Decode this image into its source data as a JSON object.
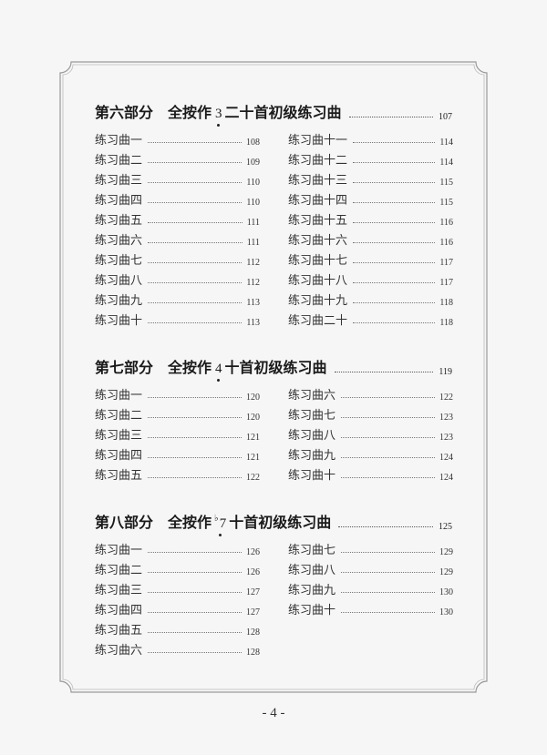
{
  "sections": [
    {
      "part": "第六部分",
      "title_pre": "全按作",
      "note": "3",
      "flat": "",
      "title_post": "二十首初级练习曲",
      "page": "107",
      "left": [
        [
          "练习曲一",
          "108"
        ],
        [
          "练习曲二",
          "109"
        ],
        [
          "练习曲三",
          "110"
        ],
        [
          "练习曲四",
          "110"
        ],
        [
          "练习曲五",
          "111"
        ],
        [
          "练习曲六",
          "111"
        ],
        [
          "练习曲七",
          "112"
        ],
        [
          "练习曲八",
          "112"
        ],
        [
          "练习曲九",
          "113"
        ],
        [
          "练习曲十",
          "113"
        ]
      ],
      "right": [
        [
          "练习曲十一",
          "114"
        ],
        [
          "练习曲十二",
          "114"
        ],
        [
          "练习曲十三",
          "115"
        ],
        [
          "练习曲十四",
          "115"
        ],
        [
          "练习曲十五",
          "116"
        ],
        [
          "练习曲十六",
          "116"
        ],
        [
          "练习曲十七",
          "117"
        ],
        [
          "练习曲十八",
          "117"
        ],
        [
          "练习曲十九",
          "118"
        ],
        [
          "练习曲二十",
          "118"
        ]
      ]
    },
    {
      "part": "第七部分",
      "title_pre": "全按作",
      "note": "4",
      "flat": "",
      "title_post": "十首初级练习曲",
      "page": "119",
      "left": [
        [
          "练习曲一",
          "120"
        ],
        [
          "练习曲二",
          "120"
        ],
        [
          "练习曲三",
          "121"
        ],
        [
          "练习曲四",
          "121"
        ],
        [
          "练习曲五",
          "122"
        ]
      ],
      "right": [
        [
          "练习曲六",
          "122"
        ],
        [
          "练习曲七",
          "123"
        ],
        [
          "练习曲八",
          "123"
        ],
        [
          "练习曲九",
          "124"
        ],
        [
          "练习曲十",
          "124"
        ]
      ]
    },
    {
      "part": "第八部分",
      "title_pre": "全按作",
      "note": "7",
      "flat": "♭",
      "title_post": "十首初级练习曲",
      "page": "125",
      "left": [
        [
          "练习曲一",
          "126"
        ],
        [
          "练习曲二",
          "126"
        ],
        [
          "练习曲三",
          "127"
        ],
        [
          "练习曲四",
          "127"
        ],
        [
          "练习曲五",
          "128"
        ],
        [
          "练习曲六",
          "128"
        ]
      ],
      "right": [
        [
          "练习曲七",
          "129"
        ],
        [
          "练习曲八",
          "129"
        ],
        [
          "练习曲九",
          "130"
        ],
        [
          "练习曲十",
          "130"
        ]
      ]
    }
  ],
  "page_number": "- 4 -"
}
